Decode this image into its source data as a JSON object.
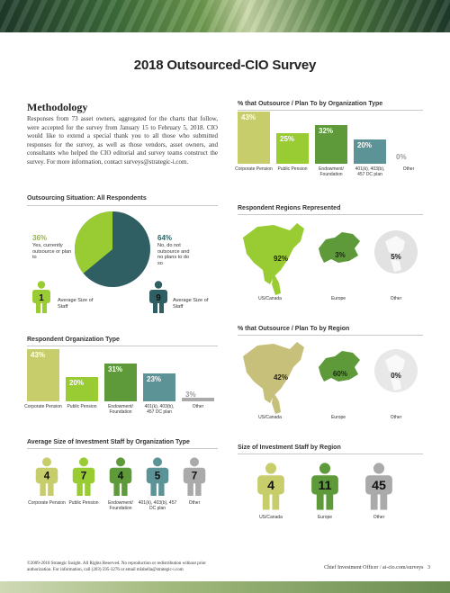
{
  "colors": {
    "lightgreen": "#c7cd6b",
    "brightgreen": "#99cc33",
    "midgreen": "#5e9a3a",
    "teal": "#5c9396",
    "gray": "#aaaaaa",
    "darkteal": "#2f5f63"
  },
  "page_title": "2018 Outsourced-CIO Survey",
  "methodology": {
    "heading": "Methodology",
    "text": "Responses from 73 asset owners, aggregated for the charts that follow, were accepted for the survey from January 15 to February 5, 2018. CIO would like to extend a special thank you to all those who submitted responses for the survey, as well as those vendors, asset owners, and consultants who helped the CIO editorial and survey teams construct the survey. For more information, contact surveys@strategic-i.com."
  },
  "outsourcing_situation": {
    "heading": "Outsourcing Situation: All Respondents",
    "yes": {
      "pct": "36%",
      "label": "Yes, currently outsource or plan to",
      "value": 36
    },
    "no": {
      "pct": "64%",
      "label": "No, do not outsource and no plans to do so",
      "value": 64
    },
    "staff_yes": {
      "number": "1",
      "label": "Average Size of Staff"
    },
    "staff_no": {
      "number": "9",
      "label": "Average Size of Staff"
    }
  },
  "respondent_org_type": {
    "heading": "Respondent Organization Type",
    "chart_data": {
      "type": "bar",
      "categories": [
        "Corporate Pension",
        "Public Pension",
        "Endowment/ Foundation",
        "401(k), 403(b), 457 DC plan",
        "Other"
      ],
      "values": [
        43,
        20,
        31,
        23,
        3
      ],
      "labels": [
        "43%",
        "20%",
        "31%",
        "23%",
        "3%"
      ]
    }
  },
  "avg_staff_by_org": {
    "heading": "Average Size of Investment Staff by Organization Type",
    "categories": [
      "Corporate Pension",
      "Public Pension",
      "Endowment/ Foundation",
      "401(k), 403(b), 457 DC plan",
      "Other"
    ],
    "values": [
      "4",
      "7",
      "4",
      "5",
      "7"
    ]
  },
  "outsource_by_org": {
    "heading": "% that Outsource / Plan To by Organization Type",
    "chart_data": {
      "type": "bar",
      "categories": [
        "Corporate Pension",
        "Public Pension",
        "Endowment/ Foundation",
        "401(k), 403(b), 457 DC plan",
        "Other"
      ],
      "values": [
        43,
        25,
        32,
        20,
        0
      ],
      "labels": [
        "43%",
        "25%",
        "32%",
        "20%",
        "0%"
      ]
    }
  },
  "respondent_regions": {
    "heading": "Respondent Regions Represented",
    "regions": [
      "US/Canada",
      "Europe",
      "Other"
    ],
    "values": [
      "92%",
      "3%",
      "5%"
    ]
  },
  "outsource_by_region": {
    "heading": "% that Outsource / Plan To by Region",
    "regions": [
      "US/Canada",
      "Europe",
      "Other"
    ],
    "values": [
      "42%",
      "60%",
      "0%"
    ]
  },
  "staff_by_region": {
    "heading": "Size of Investment Staff by Region",
    "regions": [
      "US/Canada",
      "Europe",
      "Other"
    ],
    "values": [
      "4",
      "11",
      "45"
    ]
  },
  "footer": {
    "line1": "©2009-2018 Strategic Insight. All Rights Reserved. No reproduction or redistribution without prior",
    "line2": "authorization. For information, call (203) 595-3276 or email mlabella@strategic-i.com",
    "right": "Chief Investment Officer / ai-cio.com/surveys",
    "page": "3"
  }
}
